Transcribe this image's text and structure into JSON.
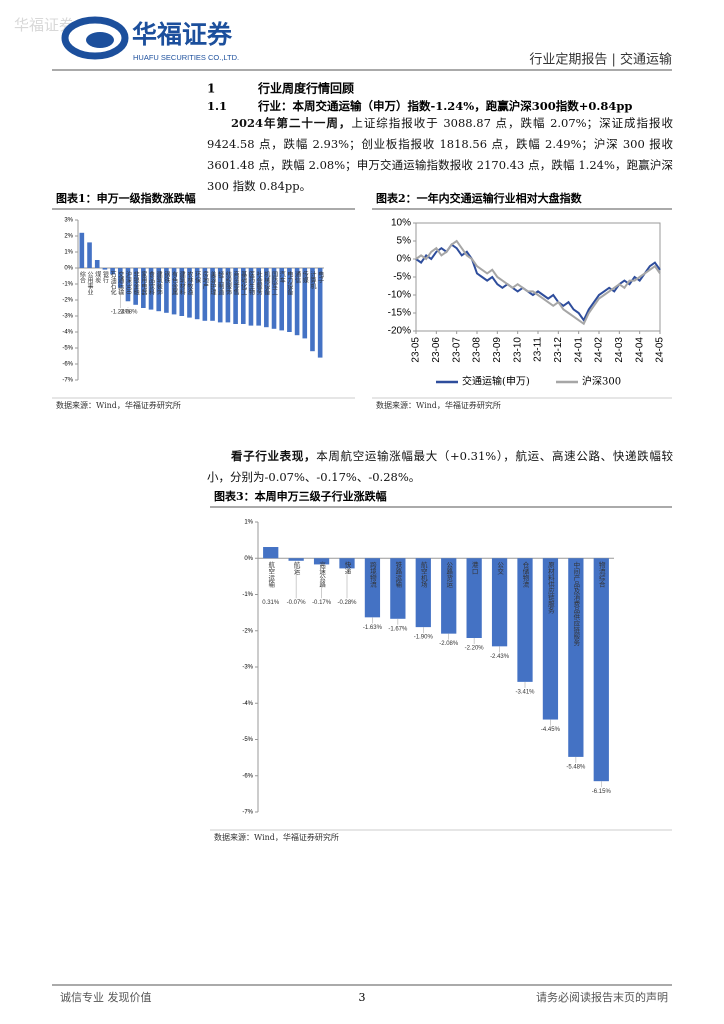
{
  "header": {
    "watermark": "华福证券",
    "brand": "华福证券",
    "brand_en": "HUAFU SECURITIES CO.,LTD.",
    "report_type": "行业定期报告 | 交通运输"
  },
  "section": {
    "number": "1",
    "title": "行业周度行情回顾",
    "sub_number": "1.1",
    "sub_title": "行业：本周交通运输（申万）指数-1.24%，跑赢沪深300指数+0.84pp"
  },
  "paragraphs": [
    {
      "lead": "2024年第二十一周，",
      "text": "上证综指报收于 3088.87 点，跌幅 2.07%；深证成指报收 9424.58 点，跌幅 2.93%；创业板指报收 1818.56 点，跌幅 2.49%；沪深 300 报收 3601.48 点，跌幅 2.08%；申万交通运输指数报收 2170.43 点，跌幅 1.24%，跑赢沪深 300 指数 0.84pp。"
    },
    {
      "lead": "看子行业表现，",
      "text": "本周航空运输涨幅最大（+0.31%），航运、高速公路、快递跌幅较小，分别为-0.07%、-0.17%、-0.28%。"
    }
  ],
  "chart_data": [
    {
      "type": "bar",
      "title": "图表1：申万一级指数涨跌幅",
      "source": "数据来源：Wind，华福证券研究所",
      "color": "#4472c4",
      "categories": [
        "综合",
        "公用事业",
        "煤炭",
        "银行",
        "石油石化",
        "交通运输",
        "沪深300",
        "非银金融",
        "家用电器",
        "食品饮料",
        "建筑装饰",
        "钢铁",
        "有色金属",
        "建筑材料",
        "农林牧渔",
        "环保",
        "房地产",
        "美容护理",
        "轻工制造",
        "纺织服饰",
        "商贸零售",
        "基础化工",
        "医药生物",
        "社会服务",
        "机械设备",
        "国防军工",
        "汽车",
        "电力设备",
        "通信",
        "传媒",
        "计算机",
        "电子"
      ],
      "values": [
        2.2,
        1.6,
        0.5,
        -0.1,
        -0.4,
        -1.24,
        -2.08,
        -2.3,
        -2.5,
        -2.6,
        -2.7,
        -2.8,
        -2.9,
        -3.0,
        -3.1,
        -3.2,
        -3.3,
        -3.3,
        -3.4,
        -3.4,
        -3.5,
        -3.5,
        -3.6,
        -3.6,
        -3.7,
        -3.8,
        -3.9,
        -4.0,
        -4.2,
        -4.4,
        -5.2,
        -5.6
      ],
      "value_labels": [
        null,
        null,
        null,
        null,
        null,
        "-1.24%",
        "-2.08%",
        null,
        null,
        null,
        null,
        null,
        null,
        null,
        null,
        null,
        null,
        null,
        null,
        null,
        null,
        null,
        null,
        null,
        null,
        null,
        null,
        null,
        null,
        null,
        null,
        null
      ],
      "ylim": [
        -7,
        3
      ],
      "yticks": [
        {
          "value": 3,
          "label": "3%"
        },
        {
          "value": 2,
          "label": "2%"
        },
        {
          "value": 1,
          "label": "1%"
        },
        {
          "value": 0,
          "label": "0%"
        },
        {
          "value": -1,
          "label": "-1%"
        },
        {
          "value": -2,
          "label": "-2%"
        },
        {
          "value": -3,
          "label": "-3%"
        },
        {
          "value": -4,
          "label": "-4%"
        },
        {
          "value": -5,
          "label": "-5%"
        },
        {
          "value": -6,
          "label": "-6%"
        },
        {
          "value": -7,
          "label": "-7%"
        }
      ]
    },
    {
      "type": "line",
      "title": "图表2：一年内交通运输行业相对大盘指数",
      "source": "数据来源：Wind，华福证券研究所",
      "xlim": [
        0,
        48
      ],
      "xticks": [
        {
          "value": 0,
          "label": "23-05"
        },
        {
          "value": 4,
          "label": "23-06"
        },
        {
          "value": 8,
          "label": "23-07"
        },
        {
          "value": 12,
          "label": "23-08"
        },
        {
          "value": 16,
          "label": "23-09"
        },
        {
          "value": 20,
          "label": "23-10"
        },
        {
          "value": 24,
          "label": "23-11"
        },
        {
          "value": 28,
          "label": "23-12"
        },
        {
          "value": 32,
          "label": "24-01"
        },
        {
          "value": 36,
          "label": "24-02"
        },
        {
          "value": 40,
          "label": "24-03"
        },
        {
          "value": 44,
          "label": "24-04"
        },
        {
          "value": 48,
          "label": "24-05"
        }
      ],
      "ylim": [
        -20,
        10
      ],
      "yticks": [
        {
          "value": 10,
          "label": "10%"
        },
        {
          "value": 5,
          "label": "5%"
        },
        {
          "value": 0,
          "label": "0%"
        },
        {
          "value": -5,
          "label": "-5%"
        },
        {
          "value": -10,
          "label": "-10%"
        },
        {
          "value": -15,
          "label": "-15%"
        },
        {
          "value": -20,
          "label": "-20%"
        }
      ],
      "series": [
        {
          "name": "交通运输(申万)",
          "color": "#2e4d9c",
          "values": [
            0,
            -1,
            1,
            0,
            2,
            3,
            2,
            4,
            3,
            1,
            2,
            0,
            -4,
            -5,
            -6,
            -5,
            -7,
            -8,
            -7,
            -8,
            -9,
            -8,
            -9,
            -10,
            -9,
            -10,
            -11,
            -10,
            -12,
            -13,
            -12,
            -14,
            -15,
            -17,
            -14,
            -12,
            -10,
            -9,
            -8,
            -9,
            -7,
            -6,
            -7,
            -5,
            -6,
            -4,
            -2,
            -1,
            -3
          ]
        },
        {
          "name": "沪深300",
          "color": "#a6a6a6",
          "values": [
            0,
            1,
            0,
            2,
            3,
            1,
            2,
            4,
            5,
            3,
            1,
            0,
            -2,
            -3,
            -4,
            -3,
            -5,
            -6,
            -7,
            -8,
            -7,
            -8,
            -9,
            -9,
            -10,
            -11,
            -12,
            -13,
            -12,
            -14,
            -15,
            -16,
            -17,
            -18,
            -15,
            -13,
            -11,
            -10,
            -9,
            -8,
            -7,
            -8,
            -6,
            -6,
            -5,
            -4,
            -3,
            -2,
            -4
          ]
        }
      ]
    },
    {
      "type": "bar",
      "title": "图表3：本周申万三级子行业涨跌幅",
      "source": "数据来源：Wind，华福证券研究所",
      "color": "#4472c4",
      "categories": [
        "航空运输",
        "航运",
        "高速公路",
        "快递",
        "跨境物流",
        "铁路运输",
        "航空机场",
        "公路货运",
        "港口",
        "公交",
        "仓储物流",
        "原材料供应链服务",
        "中间产品及消费品供应链服务",
        "物流综合"
      ],
      "values": [
        0.31,
        -0.07,
        -0.17,
        -0.28,
        -1.63,
        -1.67,
        -1.9,
        -2.08,
        -2.2,
        -2.43,
        -3.41,
        -4.45,
        -5.48,
        -6.15
      ],
      "value_labels": [
        "0.31%",
        "-0.07%",
        "-0.17%",
        "-0.28%",
        "-1.63%",
        "-1.67%",
        "-1.90%",
        "-2.08%",
        "-2.20%",
        "-2.43%",
        "-3.41%",
        "-4.45%",
        "-5.48%",
        "-6.15%"
      ],
      "ylim": [
        -7,
        1
      ],
      "yticks": [
        {
          "value": 1,
          "label": "1%"
        },
        {
          "value": 0,
          "label": "0%"
        },
        {
          "value": -1,
          "label": "-1%"
        },
        {
          "value": -2,
          "label": "-2%"
        },
        {
          "value": -3,
          "label": "-3%"
        },
        {
          "value": -4,
          "label": "-4%"
        },
        {
          "value": -5,
          "label": "-5%"
        },
        {
          "value": -6,
          "label": "-6%"
        },
        {
          "value": -7,
          "label": "-7%"
        }
      ]
    }
  ],
  "footer": {
    "left": "诚信专业  发现价值",
    "page": "3",
    "right": "请务必阅读报告末页的声明"
  }
}
